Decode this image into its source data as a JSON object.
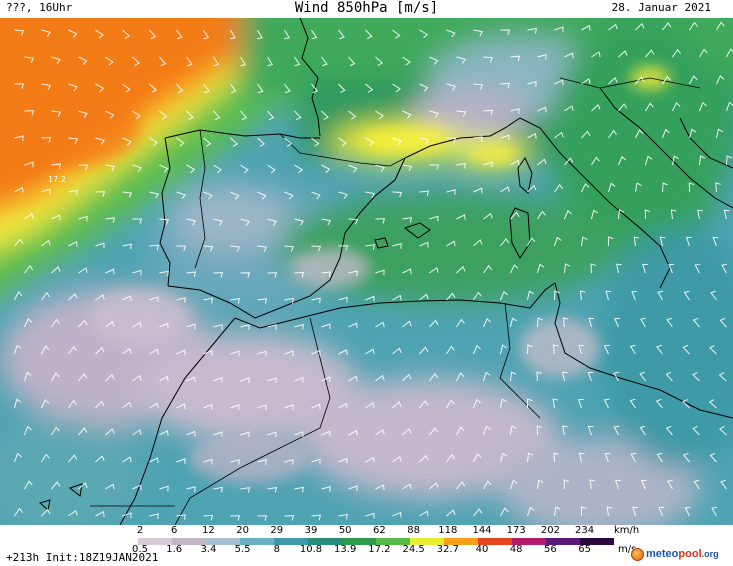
{
  "header": {
    "left_label": "???, 16Uhr",
    "title": "Wind 850hPa [m/s]",
    "date": "28. Januar 2021"
  },
  "map": {
    "region": "Western Mediterranean",
    "peak_label": "17.2",
    "colors": {
      "calm": "#c9bccd",
      "light": "#4aa1b0",
      "moderate": "#2e8a5c",
      "fresh": "#5cbe4e",
      "strong": "#f5f22c",
      "gale": "#f47b12",
      "coast": "#000000",
      "barb": "#ffffff"
    }
  },
  "legend": {
    "kmh_ticks": [
      "2",
      "6",
      "12",
      "20",
      "29",
      "39",
      "50",
      "62",
      "88",
      "118",
      "144",
      "173",
      "202",
      "234"
    ],
    "kmh_unit": "km/h",
    "ms_ticks": [
      "0.5",
      "1.6",
      "3.4",
      "5.5",
      "8",
      "10.8",
      "13.9",
      "17.2",
      "24.5",
      "32.7",
      "40",
      "48",
      "56",
      "65"
    ],
    "ms_unit": "m/s",
    "colors": [
      "#ffffff",
      "#d9ccd8",
      "#c3b4c8",
      "#a9bdd0",
      "#6cb0c4",
      "#3f99aa",
      "#2a8c7a",
      "#2e9a4c",
      "#55bb45",
      "#e8ee30",
      "#f7a11a",
      "#e6461f",
      "#b51c6e",
      "#5a1a7a",
      "#2a0a3c"
    ]
  },
  "footer": {
    "run_info": "+213h Init:18Z19JAN2021"
  },
  "logo": {
    "part1": "meteo",
    "part2": "pool",
    "part3": ".org"
  }
}
